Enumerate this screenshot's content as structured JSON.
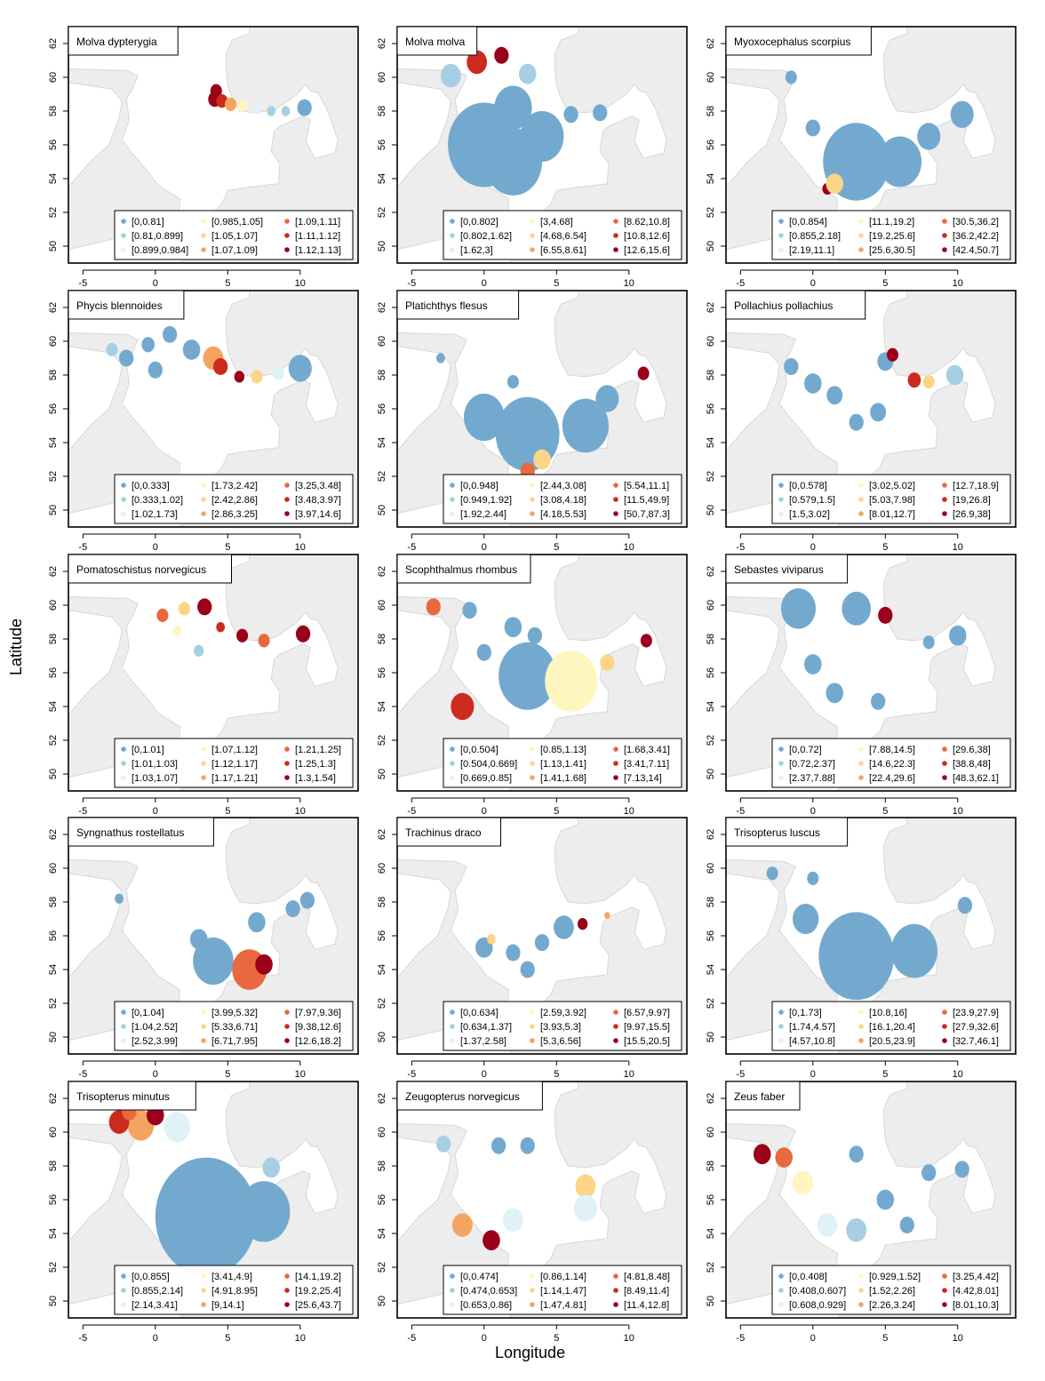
{
  "labels": {
    "x": "Longitude",
    "y": "Latitude"
  },
  "colors": [
    "#74a9cf",
    "#a6cfe3",
    "#e0f1f7",
    "#fff5be",
    "#fdd488",
    "#f4a460",
    "#e8693d",
    "#cc2a1e",
    "#9a001a"
  ],
  "chart_data": [
    {
      "type": "heatmap",
      "title": "Molva dypterygia",
      "xlim": [
        -6,
        14
      ],
      "ylim": [
        49,
        63
      ],
      "xticks": [
        -5,
        0,
        5,
        10
      ],
      "yticks": [
        50,
        52,
        54,
        56,
        58,
        60,
        62
      ],
      "legend_position": "bottom-right",
      "legend": [
        "[0,0.81]",
        "[0.81,0.899]",
        "[0.899,0.984]",
        "[0.985,1.05]",
        "[1.05,1.07]",
        "[1.07,1.09]",
        "[1.09,1.11]",
        "[1.11,1.12]",
        "[1.12,1.13]"
      ]
    },
    {
      "type": "heatmap",
      "title": "Molva molva",
      "xlim": [
        -6,
        14
      ],
      "ylim": [
        49,
        63
      ],
      "xticks": [
        -5,
        0,
        5,
        10
      ],
      "yticks": [
        50,
        52,
        54,
        56,
        58,
        60,
        62
      ],
      "legend_position": "bottom-right",
      "legend": [
        "[0,0.802]",
        "[0.802,1.62]",
        "[1.62,3]",
        "[3,4.68]",
        "[4.68,6.54]",
        "[6.55,8.61]",
        "[8.62,10.8]",
        "[10.8,12.6]",
        "[12.6,15.6]"
      ]
    },
    {
      "type": "heatmap",
      "title": "Myoxocephalus scorpius",
      "xlim": [
        -6,
        14
      ],
      "ylim": [
        49,
        63
      ],
      "xticks": [
        -5,
        0,
        5,
        10
      ],
      "yticks": [
        50,
        52,
        54,
        56,
        58,
        60,
        62
      ],
      "legend_position": "bottom-right",
      "legend": [
        "[0,0.854]",
        "[0.855,2.18]",
        "[2.19,11.1]",
        "[11.1,19.2]",
        "[19.2,25.6]",
        "[25.6,30.5]",
        "[30.5,36.2]",
        "[36.2,42.2]",
        "[42.4,50.7]"
      ]
    },
    {
      "type": "heatmap",
      "title": "Phycis blennoides",
      "xlim": [
        -6,
        14
      ],
      "ylim": [
        49,
        63
      ],
      "xticks": [
        -5,
        0,
        5,
        10
      ],
      "yticks": [
        50,
        52,
        54,
        56,
        58,
        60,
        62
      ],
      "legend_position": "bottom-right",
      "legend": [
        "[0,0.333]",
        "[0.333,1.02]",
        "[1.02,1.73]",
        "[1.73,2.42]",
        "[2.42,2.86]",
        "[2.86,3.25]",
        "[3.25,3.48]",
        "[3.48,3.97]",
        "[3.97,14.6]"
      ]
    },
    {
      "type": "heatmap",
      "title": "Platichthys flesus",
      "xlim": [
        -6,
        14
      ],
      "ylim": [
        49,
        63
      ],
      "xticks": [
        -5,
        0,
        5,
        10
      ],
      "yticks": [
        50,
        52,
        54,
        56,
        58,
        60,
        62
      ],
      "legend_position": "bottom-right",
      "legend": [
        "[0,0.948]",
        "[0.949,1.92]",
        "[1.92,2.44]",
        "[2.44,3.08]",
        "[3.08,4.18]",
        "[4.18,5.53]",
        "[5.54,11.1]",
        "[11.5,49.9]",
        "[50.7,87.3]"
      ]
    },
    {
      "type": "heatmap",
      "title": "Pollachius pollachius",
      "xlim": [
        -6,
        14
      ],
      "ylim": [
        49,
        63
      ],
      "xticks": [
        -5,
        0,
        5,
        10
      ],
      "yticks": [
        50,
        52,
        54,
        56,
        58,
        60,
        62
      ],
      "legend_position": "bottom-right",
      "legend": [
        "[0,0.578]",
        "[0.579,1.5]",
        "[1.5,3.02]",
        "[3.02,5.02]",
        "[5.03,7.98]",
        "[8.01,12.7]",
        "[12.7,18.9]",
        "[19,26.8]",
        "[26.9,38]"
      ]
    },
    {
      "type": "heatmap",
      "title": "Pomatoschistus norvegicus",
      "xlim": [
        -6,
        14
      ],
      "ylim": [
        49,
        63
      ],
      "xticks": [
        -5,
        0,
        5,
        10
      ],
      "yticks": [
        50,
        52,
        54,
        56,
        58,
        60,
        62
      ],
      "legend_position": "bottom-right",
      "legend": [
        "[0,1.01]",
        "[1.01,1.03]",
        "[1.03,1.07]",
        "[1.07,1.12]",
        "[1.12,1.17]",
        "[1.17,1.21]",
        "[1.21,1.25]",
        "[1.25,1.3]",
        "[1.3,1.54]"
      ]
    },
    {
      "type": "heatmap",
      "title": "Scophthalmus rhombus",
      "xlim": [
        -6,
        14
      ],
      "ylim": [
        49,
        63
      ],
      "xticks": [
        -5,
        0,
        5,
        10
      ],
      "yticks": [
        50,
        52,
        54,
        56,
        58,
        60,
        62
      ],
      "legend_position": "bottom-right",
      "legend": [
        "[0,0.504]",
        "[0.504,0.669]",
        "[0.669,0.85]",
        "[0.85,1.13]",
        "[1.13,1.41]",
        "[1.41,1.68]",
        "[1.68,3.41]",
        "[3.41,7.11]",
        "[7.13,14]"
      ]
    },
    {
      "type": "heatmap",
      "title": "Sebastes viviparus",
      "xlim": [
        -6,
        14
      ],
      "ylim": [
        49,
        63
      ],
      "xticks": [
        -5,
        0,
        5,
        10
      ],
      "yticks": [
        50,
        52,
        54,
        56,
        58,
        60,
        62
      ],
      "legend_position": "bottom-right",
      "legend": [
        "[0,0.72]",
        "[0.72,2.37]",
        "[2.37,7.88]",
        "[7.88,14.5]",
        "[14.6,22.3]",
        "[22.4,29.6]",
        "[29.6,38]",
        "[38.8,48]",
        "[48.3,62.1]"
      ]
    },
    {
      "type": "heatmap",
      "title": "Syngnathus rostellatus",
      "xlim": [
        -6,
        14
      ],
      "ylim": [
        49,
        63
      ],
      "xticks": [
        -5,
        0,
        5,
        10
      ],
      "yticks": [
        50,
        52,
        54,
        56,
        58,
        60,
        62
      ],
      "legend_position": "bottom-right",
      "legend": [
        "[0,1.04]",
        "[1.04,2.52]",
        "[2.52,3.99]",
        "[3.99,5.32]",
        "[5.33,6.71]",
        "[6.71,7.95]",
        "[7.97,9.36]",
        "[9.38,12.6]",
        "[12.6,18.2]"
      ]
    },
    {
      "type": "heatmap",
      "title": "Trachinus draco",
      "xlim": [
        -6,
        14
      ],
      "ylim": [
        49,
        63
      ],
      "xticks": [
        -5,
        0,
        5,
        10
      ],
      "yticks": [
        50,
        52,
        54,
        56,
        58,
        60,
        62
      ],
      "legend_position": "bottom-right",
      "legend": [
        "[0,0.634]",
        "[0.634,1.37]",
        "[1.37,2.58]",
        "[2.59,3.92]",
        "[3.93,5.3]",
        "[5.3,6.56]",
        "[6.57,9.97]",
        "[9.97,15.5]",
        "[15.5,20.5]"
      ]
    },
    {
      "type": "heatmap",
      "title": "Trisopterus luscus",
      "xlim": [
        -6,
        14
      ],
      "ylim": [
        49,
        63
      ],
      "xticks": [
        -5,
        0,
        5,
        10
      ],
      "yticks": [
        50,
        52,
        54,
        56,
        58,
        60,
        62
      ],
      "legend_position": "bottom-right",
      "legend": [
        "[0,1.73]",
        "[1.74,4.57]",
        "[4.57,10.8]",
        "[10.8,16]",
        "[16.1,20.4]",
        "[20.5,23.9]",
        "[23.9,27.9]",
        "[27.9,32.6]",
        "[32.7,46.1]"
      ]
    },
    {
      "type": "heatmap",
      "title": "Trisopterus minutus",
      "xlim": [
        -6,
        14
      ],
      "ylim": [
        49,
        63
      ],
      "xticks": [
        -5,
        0,
        5,
        10
      ],
      "yticks": [
        50,
        52,
        54,
        56,
        58,
        60,
        62
      ],
      "legend_position": "bottom-right",
      "legend": [
        "[0,0.855]",
        "[0.855,2.14]",
        "[2.14,3.41]",
        "[3.41,4.9]",
        "[4.91,8.95]",
        "[9,14.1]",
        "[14.1,19.2]",
        "[19.2,25.4]",
        "[25.6,43.7]"
      ]
    },
    {
      "type": "heatmap",
      "title": "Zeugopterus norvegicus",
      "xlim": [
        -6,
        14
      ],
      "ylim": [
        49,
        63
      ],
      "xticks": [
        -5,
        0,
        5,
        10
      ],
      "yticks": [
        50,
        52,
        54,
        56,
        58,
        60,
        62
      ],
      "legend_position": "bottom-right",
      "legend": [
        "[0,0.474]",
        "[0.474,0.653]",
        "[0.653,0.86]",
        "[0.86,1.14]",
        "[1.14,1.47]",
        "[1.47,4.81]",
        "[4.81,8.48]",
        "[8.49,11.4]",
        "[11.4,12.8]"
      ]
    },
    {
      "type": "heatmap",
      "title": "Zeus faber",
      "xlim": [
        -6,
        14
      ],
      "ylim": [
        49,
        63
      ],
      "xticks": [
        -5,
        0,
        5,
        10
      ],
      "yticks": [
        50,
        52,
        54,
        56,
        58,
        60,
        62
      ],
      "legend_position": "bottom-right",
      "legend": [
        "[0,0.408]",
        "[0.408,0.607]",
        "[0.608,0.929]",
        "[0.929,1.52]",
        "[1.52,2.26]",
        "[2.26,3.24]",
        "[3.25,4.42]",
        "[4.42,8.01]",
        "[8.01,10.3]"
      ]
    }
  ]
}
